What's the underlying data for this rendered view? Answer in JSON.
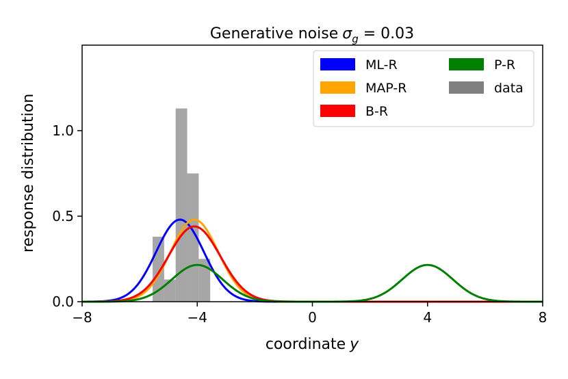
{
  "chart_data": {
    "type": "line",
    "title": "Generative noise",
    "title_symbol": "σ",
    "title_subscript": "g",
    "title_value": " = 0.03",
    "xlabel": "coordinate",
    "xlabel_var": "y",
    "ylabel": "response distribution",
    "xlim": [
      -8,
      8
    ],
    "ylim": [
      0,
      1.5
    ],
    "xticks": [
      -8,
      -4,
      0,
      4,
      8
    ],
    "xtick_labels": [
      "−8",
      "−4",
      "0",
      "4",
      "8"
    ],
    "yticks": [
      0.0,
      0.5,
      1.0
    ],
    "ytick_labels": [
      "0.0",
      "0.5",
      "1.0"
    ],
    "legend_position": "top-right",
    "histogram": {
      "name": "data",
      "color": "#808080",
      "bins": [
        {
          "x0": -5.55,
          "x1": -5.15,
          "value": 0.38
        },
        {
          "x0": -5.15,
          "x1": -4.75,
          "value": 0.13
        },
        {
          "x0": -4.75,
          "x1": -4.35,
          "value": 1.13
        },
        {
          "x0": -4.35,
          "x1": -3.95,
          "value": 0.75
        },
        {
          "x0": -3.95,
          "x1": -3.55,
          "value": 0.25
        }
      ]
    },
    "series": [
      {
        "name": "ML-R",
        "color": "#0000ff",
        "components": [
          {
            "mean": -4.6,
            "sd": 0.83,
            "peak": 0.48
          }
        ]
      },
      {
        "name": "MAP-R",
        "color": "#ffa500",
        "components": [
          {
            "mean": -4.1,
            "sd": 0.83,
            "peak": 0.48
          }
        ]
      },
      {
        "name": "B-R",
        "color": "#ff0000",
        "components": [
          {
            "mean": -4.1,
            "sd": 0.9,
            "peak": 0.44
          }
        ]
      },
      {
        "name": "P-R",
        "color": "#008000",
        "components": [
          {
            "mean": -4.0,
            "sd": 0.88,
            "peak": 0.215
          },
          {
            "mean": 4.0,
            "sd": 0.88,
            "peak": 0.215
          }
        ]
      }
    ],
    "legend_order": [
      "ML-R",
      "MAP-R",
      "B-R",
      "P-R",
      "data"
    ]
  }
}
